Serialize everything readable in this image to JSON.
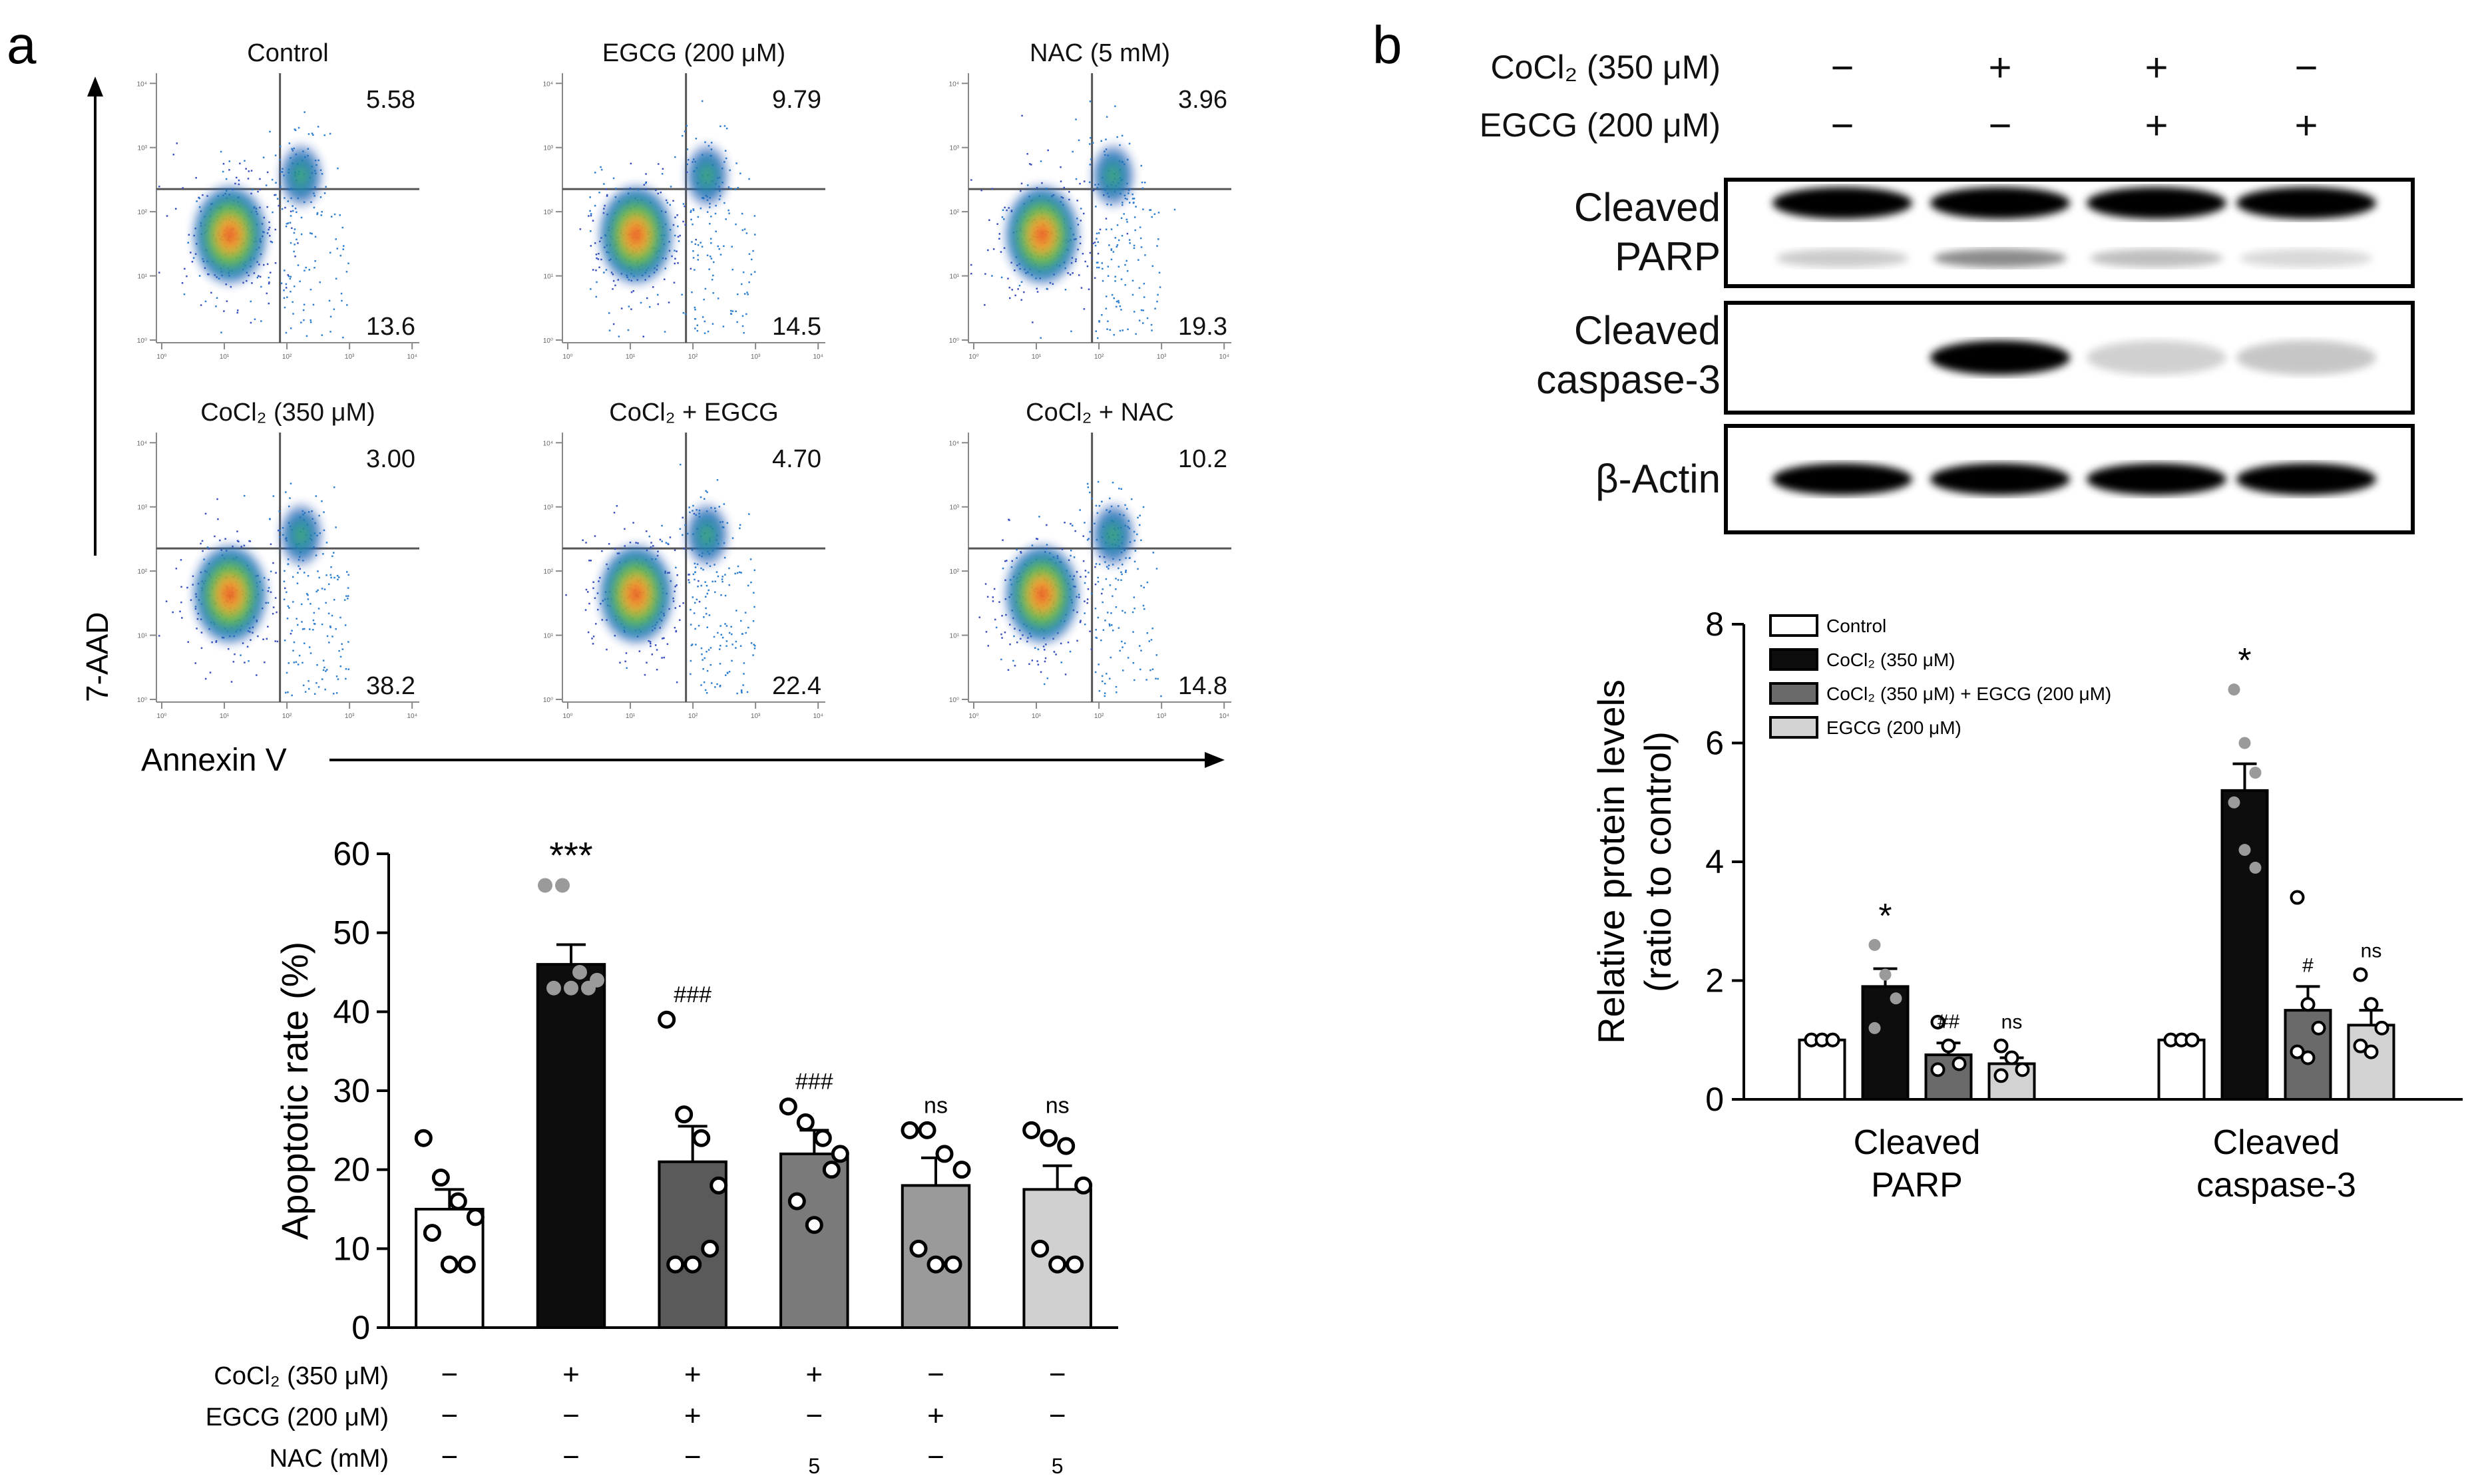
{
  "panels": {
    "a_label": "a",
    "b_label": "b"
  },
  "flow": {
    "y_axis_label": "7-AAD",
    "x_axis_label": "Annexin V",
    "plots": [
      {
        "title": "Control",
        "upper_right": "5.58",
        "lower_right": "13.6"
      },
      {
        "title": "EGCG (200 μM)",
        "upper_right": "9.79",
        "lower_right": "14.5"
      },
      {
        "title": "NAC (5 mM)",
        "upper_right": "3.96",
        "lower_right": "19.3"
      },
      {
        "title": "CoCl₂ (350 μM)",
        "upper_right": "3.00",
        "lower_right": "38.2"
      },
      {
        "title": "CoCl₂ + EGCG",
        "upper_right": "4.70",
        "lower_right": "22.4"
      },
      {
        "title": "CoCl₂ + NAC",
        "upper_right": "10.2",
        "lower_right": "14.8"
      }
    ],
    "tick_labels": [
      "10⁰",
      "10¹",
      "10²",
      "10³",
      "10⁴"
    ]
  },
  "blot": {
    "conditions": [
      {
        "label": "CoCl₂ (350 μM)",
        "signs": [
          "−",
          "+",
          "+",
          "−"
        ]
      },
      {
        "label": "EGCG (200 μM)",
        "signs": [
          "−",
          "−",
          "+",
          "+"
        ]
      }
    ],
    "bands": [
      {
        "label_lines": [
          "Cleaved",
          "PARP"
        ]
      },
      {
        "label_lines": [
          "Cleaved",
          "caspase-3"
        ]
      },
      {
        "label_lines": [
          "β-Actin"
        ]
      }
    ]
  },
  "chart_data": [
    {
      "type": "bar",
      "id": "apoptotic-rate",
      "title": "",
      "ylabel": "Apoptotic rate (%)",
      "ylim": [
        0,
        60
      ],
      "yticks": [
        "0",
        "10",
        "20",
        "30",
        "40",
        "50",
        "60"
      ],
      "values": [
        15,
        46,
        21,
        22,
        18,
        17.5
      ],
      "errors": [
        2.5,
        2.5,
        4.5,
        3,
        3.5,
        3
      ],
      "colors": [
        "#ffffff",
        "#0d0d0d",
        "#5a5a5a",
        "#7a7a7a",
        "#9a9a9a",
        "#d0d0d0"
      ],
      "significance": [
        "",
        "***",
        "###",
        "###",
        "ns",
        "ns"
      ],
      "points": [
        [
          24,
          19,
          16,
          14,
          12,
          8,
          8
        ],
        [
          56,
          56,
          45,
          44,
          43,
          43,
          43
        ],
        [
          39,
          27,
          24,
          18,
          8,
          8,
          10
        ],
        [
          28,
          26,
          24,
          22,
          16,
          13,
          20
        ],
        [
          25,
          25,
          22,
          20,
          10,
          8,
          8
        ],
        [
          25,
          24,
          23,
          18,
          10,
          8,
          8
        ]
      ],
      "point_styles": [
        "open",
        "gray",
        "open",
        "open",
        "open",
        "open"
      ],
      "conditions": [
        {
          "label": "CoCl₂ (350 μM)",
          "signs": [
            "−",
            "+",
            "+",
            "+",
            "−",
            "−"
          ]
        },
        {
          "label": "EGCG (200 μM)",
          "signs": [
            "−",
            "−",
            "+",
            "−",
            "+",
            "−"
          ]
        },
        {
          "label": "NAC (mM)",
          "signs": [
            "−",
            "−",
            "−",
            "5",
            "−",
            "5"
          ]
        }
      ]
    },
    {
      "type": "bar",
      "id": "relative-protein",
      "ylabel_lines": [
        "Relative protein levels",
        "(ratio to control)"
      ],
      "ylim": [
        0,
        8
      ],
      "yticks": [
        "0",
        "2",
        "4",
        "6",
        "8"
      ],
      "categories": [
        [
          "Cleaved",
          "PARP"
        ],
        [
          "Cleaved",
          "caspase-3"
        ]
      ],
      "series": [
        {
          "name": "Control",
          "color": "#ffffff",
          "values": [
            1,
            1
          ],
          "errors": [
            0.05,
            0.05
          ],
          "significance": [
            "",
            ""
          ],
          "point_style": "open",
          "points": [
            [
              1,
              1,
              1,
              1,
              1,
              1
            ],
            [
              1,
              1,
              1,
              1,
              1,
              1
            ]
          ]
        },
        {
          "name": "CoCl₂ (350 μM)",
          "color": "#0d0d0d",
          "values": [
            1.9,
            5.2
          ],
          "errors": [
            0.3,
            0.45
          ],
          "significance": [
            "*",
            "*"
          ],
          "point_style": "gray",
          "points": [
            [
              2.6,
              2.1,
              1.7,
              1.2
            ],
            [
              6.9,
              6.0,
              5.5,
              5.0,
              4.2,
              3.9
            ]
          ]
        },
        {
          "name": "CoCl₂ (350 μM) + EGCG (200 μM)",
          "color": "#6a6a6a",
          "values": [
            0.75,
            1.5
          ],
          "errors": [
            0.2,
            0.4
          ],
          "significance": [
            "##",
            "#"
          ],
          "point_style": "open",
          "points": [
            [
              1.3,
              0.9,
              0.6,
              0.5
            ],
            [
              3.4,
              1.6,
              1.2,
              0.8,
              0.7
            ]
          ]
        },
        {
          "name": "EGCG (200 μM)",
          "color": "#d2d2d2",
          "values": [
            0.6,
            1.25
          ],
          "errors": [
            0.1,
            0.25
          ],
          "significance": [
            "ns",
            "ns"
          ],
          "point_style": "open",
          "points": [
            [
              0.9,
              0.7,
              0.5,
              0.4
            ],
            [
              2.1,
              1.6,
              1.2,
              0.9,
              0.8
            ]
          ]
        }
      ]
    }
  ]
}
